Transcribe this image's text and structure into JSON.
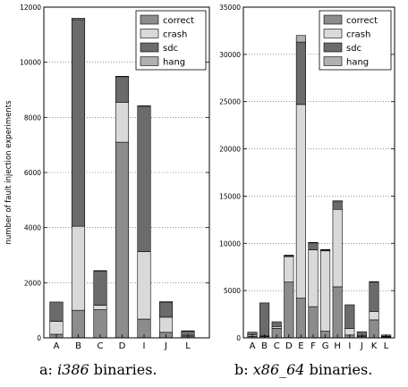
{
  "chart_data": [
    {
      "type": "bar",
      "stacked": true,
      "ylabel": "number of fault injection experiments",
      "xlabel": "",
      "ylim": [
        0,
        12000
      ],
      "yticks": [
        0,
        2000,
        4000,
        6000,
        8000,
        10000,
        12000
      ],
      "grid": "horizontal dotted",
      "legend_position": "top-right",
      "categories": [
        "A",
        "B",
        "C",
        "D",
        "I",
        "J",
        "L"
      ],
      "series": [
        {
          "name": "correct",
          "color": "#8c8c8c",
          "values": [
            130,
            1000,
            1020,
            7100,
            680,
            200,
            60
          ]
        },
        {
          "name": "crash",
          "color": "#d9d9d9",
          "values": [
            470,
            3050,
            160,
            1450,
            2450,
            550,
            30
          ]
        },
        {
          "name": "sdc",
          "color": "#6b6b6b",
          "values": [
            700,
            7500,
            1250,
            930,
            5280,
            550,
            160
          ]
        },
        {
          "name": "hang",
          "color": "#b0b0b0",
          "values": [
            0,
            50,
            10,
            10,
            10,
            10,
            5
          ]
        }
      ],
      "caption_prefix": "a:",
      "caption_italic": "i386",
      "caption_suffix": "binaries."
    },
    {
      "type": "bar",
      "stacked": true,
      "ylabel": "",
      "xlabel": "",
      "ylim": [
        0,
        35000
      ],
      "yticks": [
        0,
        5000,
        10000,
        15000,
        20000,
        25000,
        30000,
        35000
      ],
      "grid": "horizontal dotted",
      "legend_position": "top-right",
      "categories": [
        "A",
        "B",
        "C",
        "D",
        "E",
        "F",
        "G",
        "H",
        "I",
        "J",
        "K",
        "L"
      ],
      "series": [
        {
          "name": "correct",
          "color": "#8c8c8c",
          "values": [
            150,
            150,
            1000,
            5900,
            4200,
            3300,
            700,
            5400,
            300,
            150,
            1900,
            100
          ]
        },
        {
          "name": "crash",
          "color": "#d9d9d9",
          "values": [
            150,
            50,
            200,
            2700,
            20500,
            6000,
            8500,
            8200,
            700,
            100,
            900,
            50
          ]
        },
        {
          "name": "sdc",
          "color": "#6b6b6b",
          "values": [
            300,
            3500,
            500,
            100,
            6600,
            750,
            100,
            800,
            2500,
            400,
            3100,
            150
          ]
        },
        {
          "name": "hang",
          "color": "#b0b0b0",
          "values": [
            0,
            0,
            0,
            50,
            700,
            50,
            50,
            100,
            0,
            0,
            50,
            0
          ]
        }
      ],
      "caption_prefix": "b:",
      "caption_italic": "x86_64",
      "caption_suffix": "binaries."
    }
  ]
}
